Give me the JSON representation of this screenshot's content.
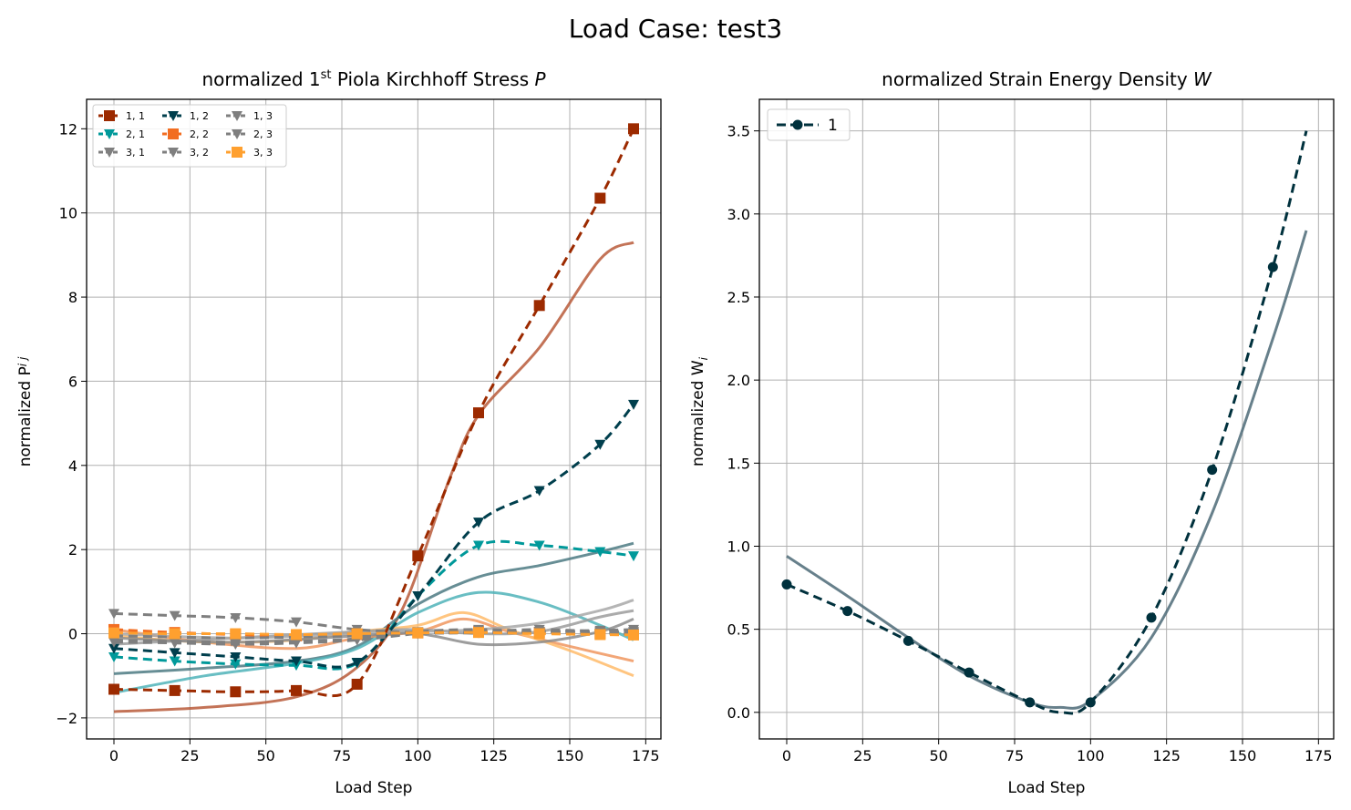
{
  "suptitle": "Load Case: test3",
  "colors": {
    "dark_red": "#9c2a00",
    "orange": "#f26d21",
    "light_orange": "#ffa02f",
    "dark_teal": "#003f4d",
    "teal": "#00999a",
    "gray": "#7f7f7f",
    "steel": "#4c6a77"
  },
  "chart_data": [
    {
      "type": "line",
      "title_prefix": "normalized 1",
      "title_sup": "st",
      "title_suffix": " Piola Kirchhoff Stress ",
      "title_var": "P",
      "xlabel": "Load Step",
      "ylabel_main": "normalized P",
      "ylabel_sub": "i j",
      "xlim": [
        -9,
        180
      ],
      "ylim": [
        -2.5,
        12.7
      ],
      "xticks": [
        0,
        25,
        50,
        75,
        100,
        125,
        150,
        175
      ],
      "yticks": [
        -2,
        0,
        2,
        4,
        6,
        8,
        10,
        12
      ],
      "grid": true,
      "legend_position": "upper left",
      "legend_columns": 3,
      "series": [
        {
          "name": "1, 1",
          "marker": "square",
          "linestyle": "dashed",
          "color": "#9c2a00",
          "x": [
            0,
            20,
            40,
            60,
            80,
            100,
            120,
            140,
            160,
            171
          ],
          "y": [
            -1.32,
            -1.35,
            -1.38,
            -1.35,
            -1.2,
            1.85,
            5.25,
            7.8,
            10.35,
            12.0
          ]
        },
        {
          "name": "2, 1",
          "marker": "triangle",
          "linestyle": "dashed",
          "color": "#00999a",
          "x": [
            0,
            20,
            40,
            60,
            80,
            100,
            120,
            140,
            160,
            171
          ],
          "y": [
            -0.55,
            -0.65,
            -0.72,
            -0.75,
            -0.7,
            0.9,
            2.1,
            2.1,
            1.95,
            1.85
          ]
        },
        {
          "name": "3, 1",
          "marker": "triangle",
          "linestyle": "dashed",
          "color": "#7f7f7f",
          "x": [
            0,
            20,
            40,
            60,
            80,
            100,
            120,
            140,
            160,
            171
          ],
          "y": [
            0.48,
            0.43,
            0.38,
            0.28,
            0.1,
            0.03,
            0.02,
            0.05,
            0.08,
            0.1
          ]
        },
        {
          "name": "1, 2",
          "marker": "triangle",
          "linestyle": "dashed",
          "color": "#003f4d",
          "x": [
            0,
            20,
            40,
            60,
            80,
            100,
            120,
            140,
            160,
            171
          ],
          "y": [
            -0.35,
            -0.45,
            -0.55,
            -0.65,
            -0.68,
            0.9,
            2.65,
            3.4,
            4.5,
            5.45
          ]
        },
        {
          "name": "2, 2",
          "marker": "square",
          "linestyle": "dashed",
          "color": "#f26d21",
          "x": [
            0,
            20,
            40,
            60,
            80,
            100,
            120,
            140,
            160,
            171
          ],
          "y": [
            0.1,
            0.03,
            -0.02,
            -0.05,
            -0.02,
            0.02,
            0.05,
            0.03,
            0.0,
            -0.02
          ]
        },
        {
          "name": "3, 2",
          "marker": "triangle",
          "linestyle": "dashed",
          "color": "#7f7f7f",
          "x": [
            0,
            20,
            40,
            60,
            80,
            100,
            120,
            140,
            160,
            171
          ],
          "y": [
            -0.15,
            -0.18,
            -0.2,
            -0.18,
            -0.12,
            0.05,
            0.1,
            0.05,
            0.02,
            0.0
          ]
        },
        {
          "name": "1, 3",
          "marker": "triangle",
          "linestyle": "dashed",
          "color": "#7f7f7f",
          "x": [
            0,
            20,
            40,
            60,
            80,
            100,
            120,
            140,
            160,
            171
          ],
          "y": [
            -0.05,
            -0.08,
            -0.1,
            -0.08,
            -0.05,
            0.0,
            0.03,
            0.05,
            0.05,
            0.05
          ]
        },
        {
          "name": "2, 3",
          "marker": "triangle",
          "linestyle": "dashed",
          "color": "#7f7f7f",
          "x": [
            0,
            20,
            40,
            60,
            80,
            100,
            120,
            140,
            160,
            171
          ],
          "y": [
            -0.2,
            -0.22,
            -0.25,
            -0.22,
            -0.15,
            0.0,
            0.05,
            0.1,
            0.05,
            0.02
          ]
        },
        {
          "name": "3, 3",
          "marker": "square",
          "linestyle": "dashed",
          "color": "#ffa02f",
          "x": [
            0,
            20,
            40,
            60,
            80,
            100,
            120,
            140,
            160,
            171
          ],
          "y": [
            0.02,
            0.0,
            0.0,
            -0.02,
            0.0,
            0.02,
            0.03,
            0.0,
            -0.02,
            -0.03
          ]
        }
      ],
      "fit_curves": [
        {
          "color": "#b85a3a",
          "x": [
            0,
            30,
            60,
            80,
            95,
            110,
            120,
            140,
            160,
            171
          ],
          "y": [
            -1.85,
            -1.75,
            -1.5,
            -0.8,
            0.6,
            3.6,
            5.2,
            6.8,
            8.9,
            9.3
          ]
        },
        {
          "color": "#4c7a82",
          "x": [
            0,
            30,
            60,
            80,
            100,
            120,
            140,
            160,
            171
          ],
          "y": [
            -0.95,
            -0.82,
            -0.65,
            -0.3,
            0.7,
            1.35,
            1.62,
            1.95,
            2.15
          ]
        },
        {
          "color": "#4fb3b8",
          "x": [
            0,
            30,
            60,
            80,
            100,
            120,
            140,
            160,
            171
          ],
          "y": [
            -1.4,
            -1.0,
            -0.7,
            -0.35,
            0.5,
            0.98,
            0.75,
            0.2,
            -0.15
          ]
        },
        {
          "color": "#f0965f",
          "x": [
            0,
            30,
            60,
            80,
            100,
            115,
            130,
            150,
            171
          ],
          "y": [
            0.1,
            -0.2,
            -0.35,
            -0.1,
            0.05,
            0.35,
            0.05,
            -0.3,
            -0.65
          ]
        },
        {
          "color": "#ffbb6a",
          "x": [
            0,
            30,
            60,
            80,
            100,
            115,
            130,
            150,
            171
          ],
          "y": [
            -0.05,
            -0.2,
            -0.15,
            0.05,
            0.2,
            0.5,
            0.1,
            -0.4,
            -1.0
          ]
        },
        {
          "color": "#9c9c9c",
          "x": [
            0,
            40,
            80,
            100,
            120,
            140,
            160,
            171
          ],
          "y": [
            -0.25,
            -0.1,
            0.05,
            0.1,
            0.0,
            0.05,
            0.4,
            0.55
          ]
        },
        {
          "color": "#a8a8a8",
          "x": [
            0,
            40,
            80,
            100,
            120,
            140,
            160,
            171
          ],
          "y": [
            0.0,
            -0.1,
            0.0,
            0.05,
            0.1,
            0.25,
            0.55,
            0.8
          ]
        },
        {
          "color": "#8c8c8c",
          "x": [
            0,
            40,
            80,
            100,
            120,
            140,
            160,
            171
          ],
          "y": [
            -0.1,
            -0.2,
            -0.05,
            0.0,
            -0.25,
            -0.2,
            0.05,
            0.35
          ]
        }
      ]
    },
    {
      "type": "line",
      "title_prefix": "normalized Strain Energy Density ",
      "title_var": "W",
      "xlabel": "Load Step",
      "ylabel_main": "normalized W",
      "ylabel_sub": "i",
      "xlim": [
        -9,
        180
      ],
      "ylim": [
        -0.16,
        3.69
      ],
      "xticks": [
        0,
        25,
        50,
        75,
        100,
        125,
        150,
        175
      ],
      "yticks": [
        0.0,
        0.5,
        1.0,
        1.5,
        2.0,
        2.5,
        3.0,
        3.5
      ],
      "ytick_labels": [
        "0.0",
        "0.5",
        "1.0",
        "1.5",
        "2.0",
        "2.5",
        "3.0",
        "3.5"
      ],
      "grid": true,
      "legend_position": "upper left",
      "series": [
        {
          "name": "1",
          "marker": "circle",
          "linestyle": "dashed",
          "color": "#00313d",
          "x": [
            0,
            20,
            40,
            60,
            80,
            90,
            100,
            120,
            140,
            160,
            171
          ],
          "y": [
            0.77,
            0.61,
            0.43,
            0.24,
            0.06,
            0.0,
            0.06,
            0.57,
            1.46,
            2.68,
            3.5
          ]
        }
      ],
      "marker_indices": [
        0,
        1,
        2,
        3,
        4,
        6,
        7,
        8,
        9
      ],
      "fit_curves": [
        {
          "color": "#4c6a77",
          "x": [
            0,
            20,
            40,
            60,
            80,
            90,
            100,
            120,
            140,
            160,
            171
          ],
          "y": [
            0.94,
            0.7,
            0.45,
            0.22,
            0.06,
            0.03,
            0.07,
            0.45,
            1.2,
            2.25,
            2.9
          ]
        }
      ]
    }
  ]
}
